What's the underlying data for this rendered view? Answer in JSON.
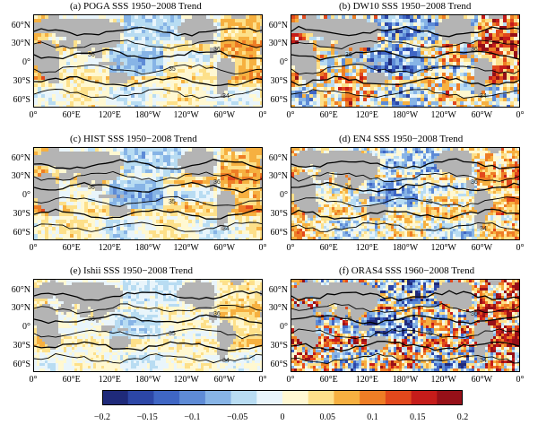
{
  "figure": {
    "panels": [
      {
        "id": "a",
        "title": "(a) POGA SSS 1950−2008 Trend"
      },
      {
        "id": "b",
        "title": "(b) DW10 SSS 1950−2008 Trend"
      },
      {
        "id": "c",
        "title": "(c) HIST SSS 1950−2008 Trend"
      },
      {
        "id": "d",
        "title": "(d) EN4 SSS 1950−2008 Trend"
      },
      {
        "id": "e",
        "title": "(e) Ishii SSS 1950−2008 Trend"
      },
      {
        "id": "f",
        "title": "(f) ORAS4 SSS 1960−2008 Trend"
      }
    ],
    "lat_labels": [
      "60°N",
      "30°N",
      "0°",
      "30°S",
      "60°S"
    ],
    "lon_labels": [
      "0°",
      "60°E",
      "120°E",
      "180°W",
      "120°W",
      "60°W",
      "0°"
    ],
    "contour_labels": [
      "36",
      "35",
      "34"
    ],
    "colorbar": {
      "ticks": [
        "−0.2",
        "−0.15",
        "−0.1",
        "−0.05",
        "0",
        "0.05",
        "0.1",
        "0.15",
        "0.2"
      ],
      "colors": [
        "#1f2a7a",
        "#2c46a6",
        "#3f66c4",
        "#5e8bd6",
        "#87b4e6",
        "#b8dcf2",
        "#e9f5fb",
        "#fff8d2",
        "#fde08a",
        "#f6b040",
        "#ee7d25",
        "#e2481c",
        "#c51c1a",
        "#961018"
      ]
    }
  }
}
